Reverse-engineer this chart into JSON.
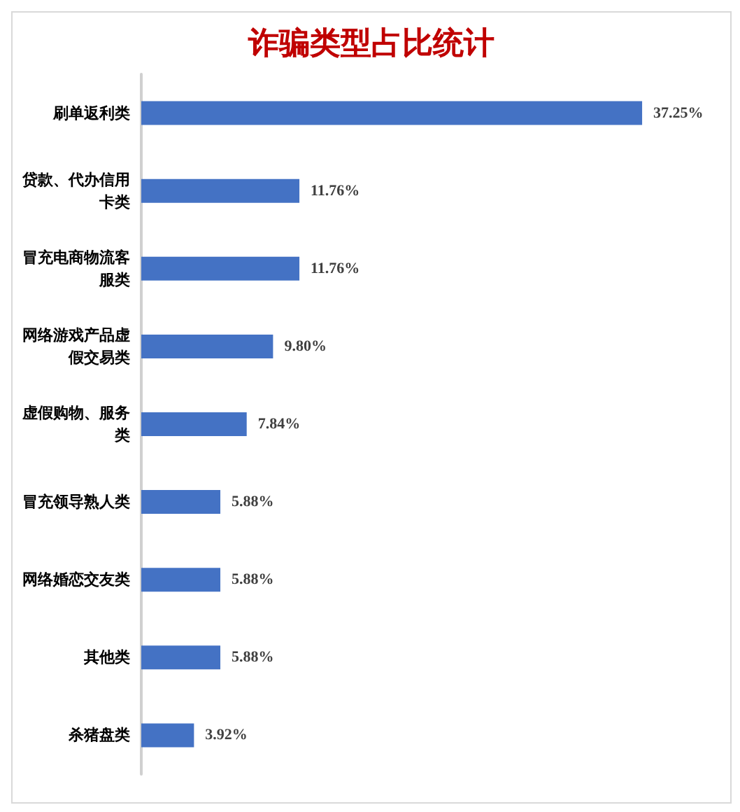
{
  "chart_data": {
    "type": "bar",
    "orientation": "horizontal",
    "title": "诈骗类型占比统计",
    "categories": [
      "刷单返利类",
      "贷款、代办信用卡类",
      "冒充电商物流客服类",
      "网络游戏产品虚假交易类",
      "虚假购物、服务类",
      "冒充领导熟人类",
      "网络婚恋交友类",
      "其他类",
      "杀猪盘类"
    ],
    "values": [
      37.25,
      11.76,
      11.76,
      9.8,
      7.84,
      5.88,
      5.88,
      5.88,
      3.92
    ],
    "value_labels": [
      "37.25%",
      "11.76%",
      "11.76%",
      "9.80%",
      "7.84%",
      "5.88%",
      "5.88%",
      "5.88%",
      "3.92%"
    ],
    "color": "#4472c4",
    "grid": false
  }
}
